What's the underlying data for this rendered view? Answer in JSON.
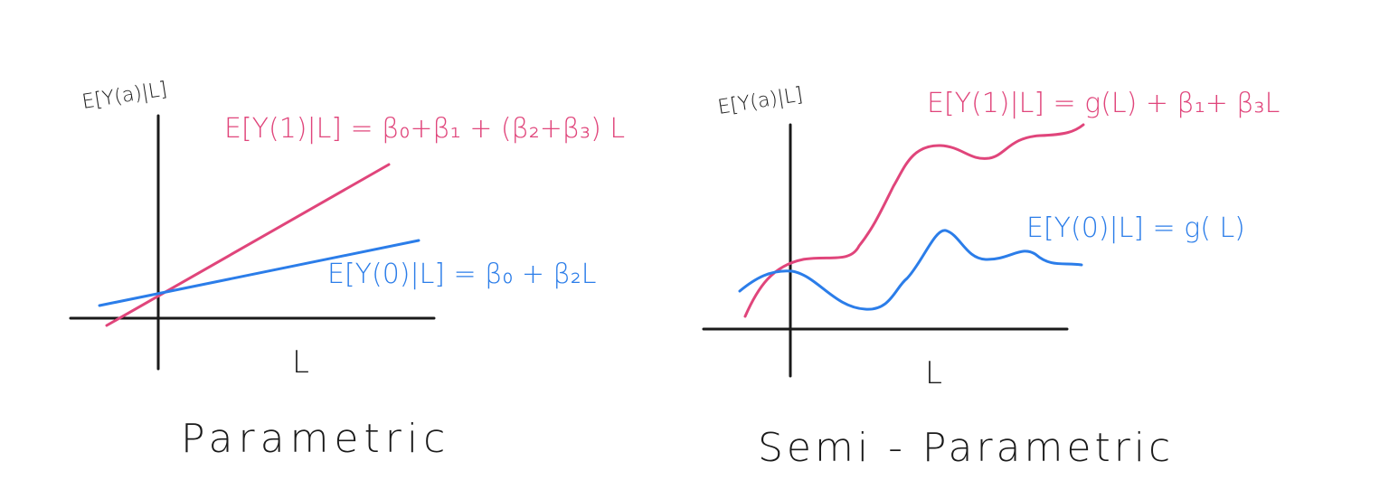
{
  "colors": {
    "treated": "#e0457b",
    "control": "#2b7de9",
    "ink": "#1a1a1a"
  },
  "left_panel": {
    "title": "Parametric",
    "y_axis_label": "E[Y(a)|L]",
    "x_axis_label": "L",
    "treated_label": "E[Y(1)|L] = β₀+β₁ + (β₂+β₃) L",
    "control_label": "E[Y(0)|L] = β₀ + β₂L"
  },
  "right_panel": {
    "title": "Semi - Parametric",
    "y_axis_label": "E[Y(a)|L]",
    "x_axis_label": "L",
    "treated_label": "E[Y(1)|L] = g(L) + β₁+ β₃L",
    "control_label": "E[Y(0)|L] = g( L)"
  }
}
